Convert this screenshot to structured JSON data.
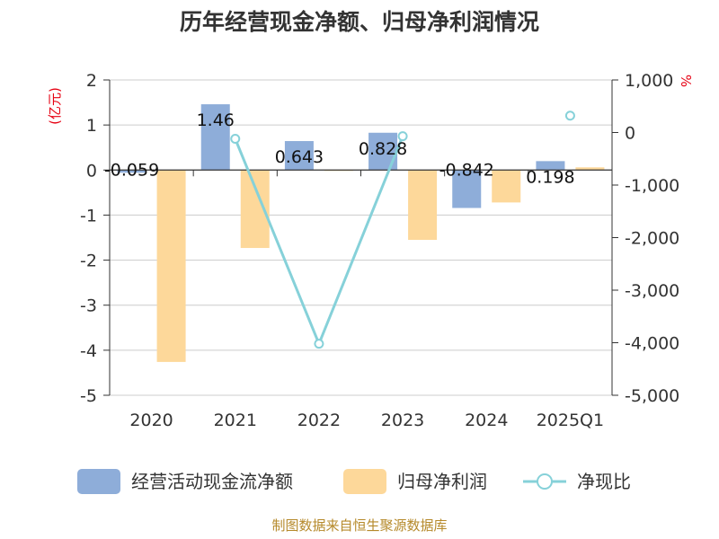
{
  "chart_data": {
    "type": "bar-line-combo",
    "title": "历年经营现金净额、归母净利润情况",
    "categories": [
      "2020",
      "2021",
      "2022",
      "2023",
      "2024",
      "2025Q1"
    ],
    "left_axis": {
      "unit": "(亿元)",
      "range": [
        -5,
        2
      ],
      "ticks": [
        "2",
        "1",
        "0",
        "-1",
        "-2",
        "-3",
        "-4",
        "-5"
      ]
    },
    "right_axis": {
      "unit": "%",
      "range": [
        -5000,
        1000
      ],
      "ticks": [
        "1,000",
        "0",
        "-1,000",
        "-2,000",
        "-3,000",
        "-4,000",
        "-5,000"
      ]
    },
    "series": [
      {
        "name": "经营活动现金流净额",
        "type": "bar",
        "axis": "left",
        "color": "#8eadd9",
        "values": [
          -0.059,
          1.46,
          0.643,
          0.828,
          -0.842,
          0.198
        ],
        "labels": [
          "-0.059",
          "1.46",
          "0.643",
          "0.828",
          "-0.842",
          "0.198"
        ]
      },
      {
        "name": "归母净利润",
        "type": "bar",
        "axis": "left",
        "color": "#fdd89a",
        "values": [
          -4.26,
          -1.73,
          -0.02,
          -1.55,
          -0.72,
          0.06
        ]
      },
      {
        "name": "净现比",
        "type": "line",
        "axis": "right",
        "color": "#86d1d9",
        "values": [
          null,
          -120,
          -4020,
          -70,
          null,
          320
        ]
      }
    ],
    "legend": "bottom",
    "grid": true
  },
  "source": "制图数据来自恒生聚源数据库"
}
